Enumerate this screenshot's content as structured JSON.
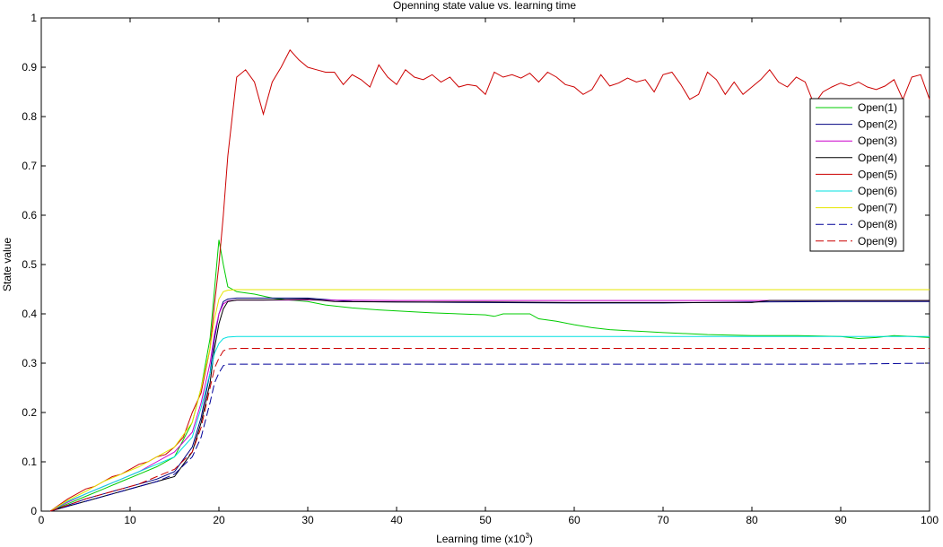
{
  "chart_data": {
    "type": "line",
    "title": "Openning state value vs. learning time",
    "xlabel_main": "Learning time (x10",
    "xlabel_sup": "3",
    "xlabel_end": ")",
    "ylabel": "State value",
    "xlim": [
      0,
      100
    ],
    "ylim": [
      0,
      1
    ],
    "xticks": [
      0,
      10,
      20,
      30,
      40,
      50,
      60,
      70,
      80,
      90,
      100
    ],
    "yticks": [
      0,
      0.1,
      0.2,
      0.3,
      0.4,
      0.5,
      0.6,
      0.7,
      0.8,
      0.9,
      1
    ],
    "xtick_labels": [
      "0",
      "10",
      "20",
      "30",
      "40",
      "50",
      "60",
      "70",
      "80",
      "90",
      "100"
    ],
    "ytick_labels": [
      "0",
      "0.1",
      "0.2",
      "0.3",
      "0.4",
      "0.5",
      "0.6",
      "0.7",
      "0.8",
      "0.9",
      "1"
    ],
    "grid": false,
    "legend_position": "top-right",
    "series": [
      {
        "name": "Open(1)",
        "color": "#00cc00",
        "dash": "solid",
        "x": [
          1,
          3,
          5,
          7,
          9,
          11,
          13,
          15,
          17,
          18,
          19,
          19.5,
          20,
          20.5,
          21,
          22,
          24,
          26,
          28,
          30,
          32,
          35,
          38,
          41,
          44,
          47,
          50,
          51,
          52,
          55,
          56,
          58,
          60,
          62,
          64,
          66,
          68,
          70,
          75,
          80,
          85,
          90,
          92,
          94,
          96,
          98,
          100
        ],
        "y": [
          0,
          0.015,
          0.03,
          0.045,
          0.06,
          0.075,
          0.09,
          0.11,
          0.18,
          0.25,
          0.35,
          0.45,
          0.55,
          0.5,
          0.455,
          0.445,
          0.44,
          0.432,
          0.428,
          0.425,
          0.418,
          0.412,
          0.408,
          0.405,
          0.402,
          0.4,
          0.398,
          0.395,
          0.4,
          0.4,
          0.39,
          0.385,
          0.378,
          0.372,
          0.368,
          0.366,
          0.364,
          0.362,
          0.358,
          0.356,
          0.356,
          0.354,
          0.35,
          0.352,
          0.356,
          0.354,
          0.352
        ]
      },
      {
        "name": "Open(2)",
        "color": "#000080",
        "dash": "solid",
        "x": [
          1,
          3,
          5,
          7,
          9,
          11,
          13,
          15,
          17,
          18,
          19,
          19.5,
          20,
          20.5,
          21,
          22,
          25,
          30,
          35,
          40,
          50,
          60,
          70,
          80,
          90,
          100
        ],
        "y": [
          0,
          0.012,
          0.025,
          0.035,
          0.045,
          0.055,
          0.065,
          0.08,
          0.13,
          0.19,
          0.28,
          0.35,
          0.4,
          0.425,
          0.43,
          0.432,
          0.432,
          0.432,
          0.425,
          0.424,
          0.423,
          0.422,
          0.422,
          0.424,
          0.425,
          0.425
        ]
      },
      {
        "name": "Open(3)",
        "color": "#cc00cc",
        "dash": "solid",
        "x": [
          1,
          3,
          5,
          7,
          9,
          11,
          13,
          15,
          17,
          18,
          19,
          19.5,
          20,
          20.5,
          21,
          22,
          25,
          30,
          40,
          50,
          60,
          70,
          80,
          90,
          100
        ],
        "y": [
          0,
          0.018,
          0.035,
          0.05,
          0.065,
          0.08,
          0.1,
          0.12,
          0.16,
          0.22,
          0.3,
          0.36,
          0.4,
          0.42,
          0.426,
          0.428,
          0.428,
          0.428,
          0.427,
          0.427,
          0.427,
          0.427,
          0.427,
          0.427,
          0.427
        ]
      },
      {
        "name": "Open(4)",
        "color": "#000000",
        "dash": "solid",
        "x": [
          1,
          3,
          5,
          7,
          9,
          11,
          13,
          15,
          17,
          18,
          19,
          19.5,
          20,
          20.5,
          21,
          22,
          25,
          30,
          33,
          40,
          50,
          60,
          70,
          80,
          82,
          85,
          90,
          100
        ],
        "y": [
          0,
          0.01,
          0.02,
          0.03,
          0.04,
          0.05,
          0.06,
          0.07,
          0.12,
          0.18,
          0.26,
          0.33,
          0.38,
          0.41,
          0.425,
          0.428,
          0.428,
          0.43,
          0.425,
          0.424,
          0.424,
          0.423,
          0.423,
          0.423,
          0.427,
          0.427,
          0.427,
          0.427
        ]
      },
      {
        "name": "Open(5)",
        "color": "#cc0000",
        "dash": "solid",
        "x": [
          1,
          3,
          5,
          6,
          7,
          8,
          9,
          10,
          11,
          12,
          13,
          14,
          15,
          16,
          17,
          18,
          19,
          19.5,
          20,
          20.5,
          21,
          22,
          23,
          24,
          25,
          26,
          27,
          28,
          29,
          30,
          31,
          32,
          33,
          34,
          35,
          36,
          37,
          38,
          39,
          40,
          41,
          42,
          43,
          44,
          45,
          46,
          47,
          48,
          49,
          50,
          51,
          52,
          53,
          54,
          55,
          56,
          57,
          58,
          59,
          60,
          61,
          62,
          63,
          64,
          65,
          66,
          67,
          68,
          69,
          70,
          71,
          72,
          73,
          74,
          75,
          76,
          77,
          78,
          79,
          80,
          81,
          82,
          83,
          84,
          85,
          86,
          87,
          88,
          89,
          90,
          91,
          92,
          93,
          94,
          95,
          96,
          97,
          98,
          99,
          100
        ],
        "y": [
          0,
          0.025,
          0.045,
          0.05,
          0.06,
          0.07,
          0.075,
          0.085,
          0.095,
          0.1,
          0.11,
          0.115,
          0.13,
          0.15,
          0.2,
          0.24,
          0.33,
          0.42,
          0.5,
          0.6,
          0.72,
          0.88,
          0.895,
          0.87,
          0.805,
          0.87,
          0.9,
          0.935,
          0.915,
          0.9,
          0.895,
          0.89,
          0.89,
          0.865,
          0.885,
          0.875,
          0.86,
          0.905,
          0.88,
          0.865,
          0.895,
          0.88,
          0.875,
          0.885,
          0.87,
          0.88,
          0.86,
          0.865,
          0.862,
          0.845,
          0.89,
          0.88,
          0.885,
          0.878,
          0.888,
          0.87,
          0.89,
          0.88,
          0.865,
          0.86,
          0.845,
          0.855,
          0.885,
          0.862,
          0.868,
          0.878,
          0.87,
          0.875,
          0.85,
          0.885,
          0.89,
          0.865,
          0.835,
          0.845,
          0.89,
          0.875,
          0.845,
          0.87,
          0.845,
          0.86,
          0.875,
          0.895,
          0.87,
          0.86,
          0.88,
          0.87,
          0.825,
          0.85,
          0.86,
          0.868,
          0.862,
          0.87,
          0.86,
          0.855,
          0.862,
          0.875,
          0.835,
          0.88,
          0.885,
          0.835
        ]
      },
      {
        "name": "Open(6)",
        "color": "#00e0e0",
        "dash": "solid",
        "x": [
          1,
          3,
          5,
          7,
          9,
          11,
          13,
          15,
          17,
          18,
          19,
          19.5,
          20,
          20.5,
          21,
          22,
          25,
          30,
          40,
          50,
          60,
          70,
          80,
          90,
          100
        ],
        "y": [
          0,
          0.02,
          0.035,
          0.05,
          0.065,
          0.08,
          0.095,
          0.11,
          0.15,
          0.21,
          0.28,
          0.32,
          0.34,
          0.35,
          0.353,
          0.354,
          0.354,
          0.354,
          0.354,
          0.354,
          0.354,
          0.354,
          0.354,
          0.354,
          0.354
        ]
      },
      {
        "name": "Open(7)",
        "color": "#e6e600",
        "dash": "solid",
        "x": [
          1,
          3,
          5,
          7,
          9,
          11,
          13,
          15,
          17,
          18,
          19,
          19.5,
          20,
          20.5,
          21,
          22,
          25,
          30,
          40,
          50,
          60,
          70,
          80,
          90,
          100
        ],
        "y": [
          0,
          0.022,
          0.04,
          0.06,
          0.075,
          0.09,
          0.11,
          0.13,
          0.18,
          0.25,
          0.33,
          0.39,
          0.43,
          0.445,
          0.448,
          0.449,
          0.449,
          0.449,
          0.449,
          0.449,
          0.449,
          0.449,
          0.449,
          0.449,
          0.449
        ]
      },
      {
        "name": "Open(8)",
        "color": "#000099",
        "dash": "dashed",
        "x": [
          1,
          3,
          5,
          7,
          9,
          11,
          13,
          15,
          17,
          18,
          19,
          19.5,
          20,
          20.5,
          21,
          22,
          25,
          30,
          40,
          50,
          60,
          70,
          80,
          90,
          100
        ],
        "y": [
          0,
          0.01,
          0.02,
          0.03,
          0.04,
          0.05,
          0.06,
          0.075,
          0.11,
          0.15,
          0.22,
          0.26,
          0.28,
          0.295,
          0.298,
          0.298,
          0.298,
          0.298,
          0.298,
          0.298,
          0.298,
          0.298,
          0.298,
          0.298,
          0.3
        ]
      },
      {
        "name": "Open(9)",
        "color": "#cc0000",
        "dash": "dashed",
        "x": [
          1,
          3,
          5,
          7,
          9,
          11,
          13,
          15,
          17,
          18,
          19,
          19.5,
          20,
          20.5,
          21,
          22,
          25,
          30,
          40,
          50,
          60,
          70,
          80,
          90,
          100
        ],
        "y": [
          0,
          0.012,
          0.025,
          0.035,
          0.045,
          0.055,
          0.07,
          0.085,
          0.12,
          0.17,
          0.25,
          0.29,
          0.31,
          0.325,
          0.329,
          0.33,
          0.33,
          0.33,
          0.33,
          0.33,
          0.33,
          0.33,
          0.33,
          0.33,
          0.33
        ]
      }
    ]
  }
}
